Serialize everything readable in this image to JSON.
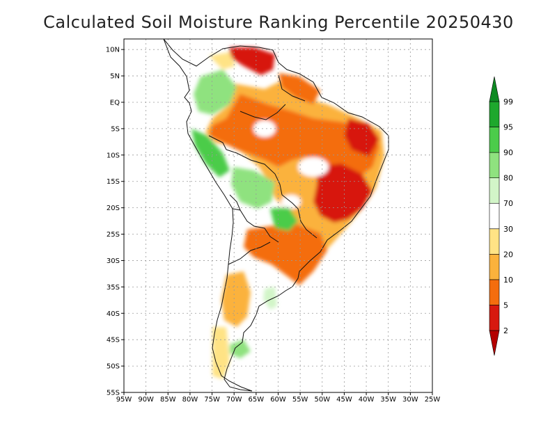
{
  "title": "Calculated Soil Moisture Ranking Percentile 20250430",
  "map": {
    "lon_range": [
      -95,
      -25
    ],
    "lat_range": [
      -55,
      12
    ],
    "lat_ticks": [
      {
        "value": 10,
        "label": "10N"
      },
      {
        "value": 5,
        "label": "5N"
      },
      {
        "value": 0,
        "label": "EQ"
      },
      {
        "value": -5,
        "label": "5S"
      },
      {
        "value": -10,
        "label": "10S"
      },
      {
        "value": -15,
        "label": "15S"
      },
      {
        "value": -20,
        "label": "20S"
      },
      {
        "value": -25,
        "label": "25S"
      },
      {
        "value": -30,
        "label": "30S"
      },
      {
        "value": -35,
        "label": "35S"
      },
      {
        "value": -40,
        "label": "40S"
      },
      {
        "value": -45,
        "label": "45S"
      },
      {
        "value": -50,
        "label": "50S"
      },
      {
        "value": -55,
        "label": "55S"
      }
    ],
    "lon_ticks": [
      {
        "value": -95,
        "label": "95W"
      },
      {
        "value": -90,
        "label": "90W"
      },
      {
        "value": -85,
        "label": "85W"
      },
      {
        "value": -80,
        "label": "80W"
      },
      {
        "value": -75,
        "label": "75W"
      },
      {
        "value": -70,
        "label": "70W"
      },
      {
        "value": -65,
        "label": "65W"
      },
      {
        "value": -60,
        "label": "60W"
      },
      {
        "value": -55,
        "label": "55W"
      },
      {
        "value": -50,
        "label": "50W"
      },
      {
        "value": -45,
        "label": "45W"
      },
      {
        "value": -40,
        "label": "40W"
      },
      {
        "value": -35,
        "label": "35W"
      },
      {
        "value": -30,
        "label": "30W"
      },
      {
        "value": -25,
        "label": "25W"
      }
    ]
  },
  "colorbar": {
    "bins": [
      {
        "label": "2",
        "color": "#b40000"
      },
      {
        "label": "5",
        "color": "#d7190f"
      },
      {
        "label": "10",
        "color": "#f46d0e"
      },
      {
        "label": "20",
        "color": "#fbb23c"
      },
      {
        "label": "30",
        "color": "#ffe385"
      },
      {
        "label": "70",
        "color": "#ffffff"
      },
      {
        "label": "80",
        "color": "#d2f5c8"
      },
      {
        "label": "90",
        "color": "#8fe27f"
      },
      {
        "label": "95",
        "color": "#4ccc4a"
      },
      {
        "label": "99",
        "color": "#1ea82d"
      },
      {
        "label": "",
        "color": "#0e8a22"
      }
    ]
  },
  "chart_data": {
    "type": "heatmap",
    "title": "Calculated Soil Moisture Ranking Percentile 20250430",
    "xlabel": "",
    "ylabel": "",
    "xlim": [
      -95,
      -25
    ],
    "ylim": [
      -55,
      12
    ],
    "grid": true,
    "legend": "right",
    "colorbar_thresholds": [
      2,
      5,
      10,
      20,
      30,
      70,
      80,
      90,
      95,
      99
    ],
    "regions": [
      {
        "lon": -66,
        "lat": 9,
        "category": "<5"
      },
      {
        "lon": -48,
        "lat": -8,
        "category": "10-20"
      },
      {
        "lon": -44,
        "lat": -9,
        "category": "<5"
      },
      {
        "lon": -43,
        "lat": -15,
        "category": "<5"
      },
      {
        "lon": -47,
        "lat": -20,
        "category": "<5"
      },
      {
        "lon": -52,
        "lat": -25,
        "category": "<5"
      },
      {
        "lon": -57,
        "lat": -27,
        "category": "5-10"
      },
      {
        "lon": -62,
        "lat": -6,
        "category": "10-20"
      },
      {
        "lon": -73,
        "lat": -5,
        "category": "5-10"
      },
      {
        "lon": -75,
        "lat": 3,
        "category": "80-95"
      },
      {
        "lon": -80,
        "lat": -8,
        "category": "80-95"
      },
      {
        "lon": -64,
        "lat": -17,
        "category": "80-95"
      },
      {
        "lon": -59,
        "lat": -22,
        "category": "90-95"
      },
      {
        "lon": -68,
        "lat": -40,
        "category": "20-30"
      },
      {
        "lon": -70,
        "lat": -47,
        "category": "80-90"
      }
    ]
  }
}
